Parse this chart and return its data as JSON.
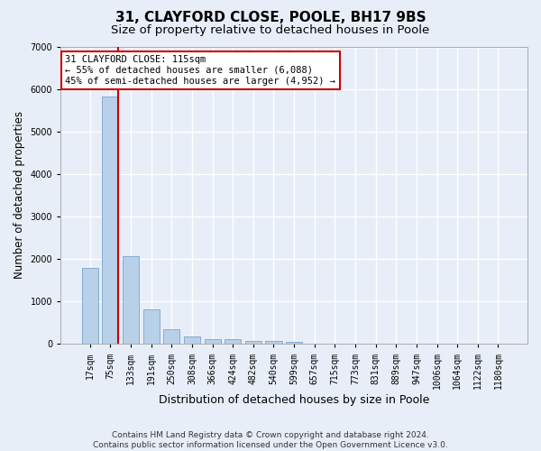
{
  "title": "31, CLAYFORD CLOSE, POOLE, BH17 9BS",
  "subtitle": "Size of property relative to detached houses in Poole",
  "xlabel": "Distribution of detached houses by size in Poole",
  "ylabel": "Number of detached properties",
  "categories": [
    "17sqm",
    "75sqm",
    "133sqm",
    "191sqm",
    "250sqm",
    "308sqm",
    "366sqm",
    "424sqm",
    "482sqm",
    "540sqm",
    "599sqm",
    "657sqm",
    "715sqm",
    "773sqm",
    "831sqm",
    "889sqm",
    "947sqm",
    "1006sqm",
    "1064sqm",
    "1122sqm",
    "1180sqm"
  ],
  "values": [
    1780,
    5820,
    2060,
    820,
    340,
    185,
    120,
    105,
    80,
    60,
    55,
    0,
    0,
    0,
    0,
    0,
    0,
    0,
    0,
    0,
    0
  ],
  "bar_color": "#b8d0e8",
  "bar_edge_color": "#6699cc",
  "vline_color": "#cc0000",
  "vline_x_index": 1,
  "ylim": [
    0,
    7000
  ],
  "yticks": [
    0,
    1000,
    2000,
    3000,
    4000,
    5000,
    6000,
    7000
  ],
  "annotation_line1": "31 CLAYFORD CLOSE: 115sqm",
  "annotation_line2": "← 55% of detached houses are smaller (6,088)",
  "annotation_line3": "45% of semi-detached houses are larger (4,952) →",
  "annotation_box_facecolor": "#ffffff",
  "annotation_box_edgecolor": "#cc0000",
  "footnote_line1": "Contains HM Land Registry data © Crown copyright and database right 2024.",
  "footnote_line2": "Contains public sector information licensed under the Open Government Licence v3.0.",
  "bg_color": "#e8eef8",
  "plot_bg_color": "#e8eef8",
  "grid_color": "#ffffff",
  "title_fontsize": 11,
  "subtitle_fontsize": 9.5,
  "xlabel_fontsize": 9,
  "ylabel_fontsize": 8.5,
  "tick_fontsize": 7,
  "annot_fontsize": 7.5,
  "footnote_fontsize": 6.5
}
